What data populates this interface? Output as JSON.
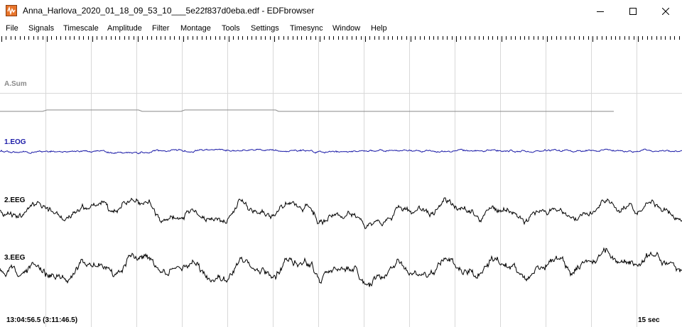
{
  "window": {
    "title": "Anna_Harlova_2020_01_18_09_53_10___5e22f837d0eba.edf - EDFbrowser",
    "icon": "edfbrowser-app-icon",
    "controls": [
      "minimize-icon",
      "maximize-icon",
      "close-icon"
    ]
  },
  "menu": {
    "file": "File",
    "signals": "Signals",
    "timescale": "Timescale",
    "amplitude": "Amplitude",
    "filter": "Filter",
    "montage": "Montage",
    "tools": "Tools",
    "settings": "Settings",
    "timesync": "Timesync",
    "window": "Window",
    "help": "Help"
  },
  "signals": {
    "asum": {
      "label": "A.Sum",
      "color": "#8a8a8a"
    },
    "eog": {
      "label": "1.EOG",
      "color": "#1c1ca8"
    },
    "eeg1": {
      "label": "2.EEG",
      "color": "#000000"
    },
    "eeg2": {
      "label": "3.EEG",
      "color": "#000000"
    }
  },
  "status": {
    "time": "13:04:56.5 (3:11:46.5)",
    "duration": "15 sec"
  },
  "colors": {
    "background": "#ffffff",
    "grid": "#d8d8d8",
    "ruler": "#000000"
  }
}
